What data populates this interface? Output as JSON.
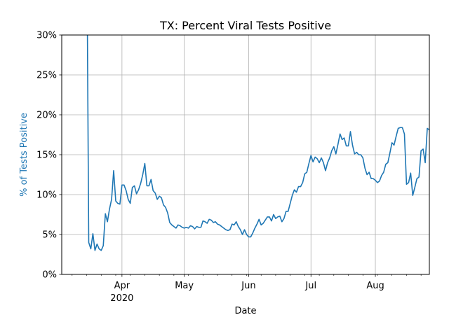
{
  "chart_data": {
    "type": "line",
    "title": "TX: Percent Viral Tests Positive",
    "xlabel": "Date",
    "ylabel": "% of Tests Positive",
    "ylim": [
      0,
      30
    ],
    "xlim": [
      "2020-03-03",
      "2020-08-27"
    ],
    "yticks": [
      0,
      5,
      10,
      15,
      20,
      25,
      30
    ],
    "ytick_labels": [
      "0%",
      "5%",
      "10%",
      "15%",
      "20%",
      "25%",
      "30%"
    ],
    "major_xticks": [
      {
        "date": "2020-04-01",
        "label": "Apr",
        "sublabel": "2020"
      },
      {
        "date": "2020-05-01",
        "label": "May",
        "sublabel": ""
      },
      {
        "date": "2020-06-01",
        "label": "Jun",
        "sublabel": ""
      },
      {
        "date": "2020-07-01",
        "label": "Jul",
        "sublabel": ""
      },
      {
        "date": "2020-08-01",
        "label": "Aug",
        "sublabel": ""
      }
    ],
    "minor_xticks": [
      "2020-03-08",
      "2020-03-15",
      "2020-03-22",
      "2020-03-29",
      "2020-04-05",
      "2020-04-12",
      "2020-04-19",
      "2020-04-26",
      "2020-05-03",
      "2020-05-10",
      "2020-05-17",
      "2020-05-24",
      "2020-05-31",
      "2020-06-07",
      "2020-06-14",
      "2020-06-21",
      "2020-06-28",
      "2020-07-05",
      "2020-07-12",
      "2020-07-19",
      "2020-07-26",
      "2020-08-02",
      "2020-08-09",
      "2020-08-16",
      "2020-08-23"
    ],
    "grid": true,
    "series": [
      {
        "color": "#1f77b4",
        "start_date": "2020-03-15",
        "values": [
          45,
          4.0,
          3.2,
          5.1,
          3.0,
          3.8,
          3.2,
          3.0,
          3.6,
          7.6,
          6.6,
          8.2,
          9.4,
          13.0,
          9.2,
          8.9,
          8.8,
          11.2,
          11.2,
          10.5,
          9.4,
          8.9,
          10.9,
          11.1,
          10.1,
          10.6,
          11.4,
          12.5,
          13.9,
          11.1,
          11.1,
          11.9,
          10.5,
          10.2,
          9.4,
          9.8,
          9.6,
          8.7,
          8.4,
          7.7,
          6.5,
          6.2,
          6.0,
          5.8,
          6.2,
          6.1,
          5.9,
          5.8,
          5.9,
          5.8,
          6.1,
          6.0,
          5.7,
          6.0,
          5.9,
          5.9,
          6.7,
          6.6,
          6.4,
          6.9,
          6.8,
          6.5,
          6.6,
          6.3,
          6.2,
          6.0,
          5.8,
          5.6,
          5.5,
          5.6,
          6.3,
          6.2,
          6.6,
          6.0,
          5.6,
          5.0,
          5.6,
          5.0,
          4.7,
          4.7,
          5.2,
          5.8,
          6.3,
          6.9,
          6.2,
          6.4,
          6.8,
          7.2,
          7.2,
          6.7,
          7.5,
          7.0,
          7.2,
          7.3,
          6.6,
          7.0,
          7.9,
          7.9,
          8.9,
          9.9,
          10.6,
          10.3,
          11.0,
          11.0,
          11.5,
          12.6,
          12.8,
          13.9,
          14.9,
          14.1,
          14.7,
          14.5,
          14.0,
          14.6,
          14.0,
          13.0,
          14.0,
          14.6,
          15.5,
          16.0,
          15.1,
          16.3,
          17.6,
          16.9,
          17.1,
          16.1,
          16.1,
          17.9,
          16.2,
          15.1,
          15.3,
          15.0,
          15.0,
          14.6,
          13.3,
          12.5,
          12.8,
          12.0,
          12.0,
          11.8,
          11.5,
          11.7,
          12.4,
          12.8,
          13.8,
          14.0,
          15.2,
          16.5,
          16.2,
          17.3,
          18.3,
          18.4,
          18.4,
          17.6,
          11.3,
          11.5,
          12.7,
          9.9,
          10.9,
          12.0,
          12.2,
          15.5,
          15.7,
          14.0,
          18.3,
          18.1,
          15.1
        ]
      }
    ]
  }
}
